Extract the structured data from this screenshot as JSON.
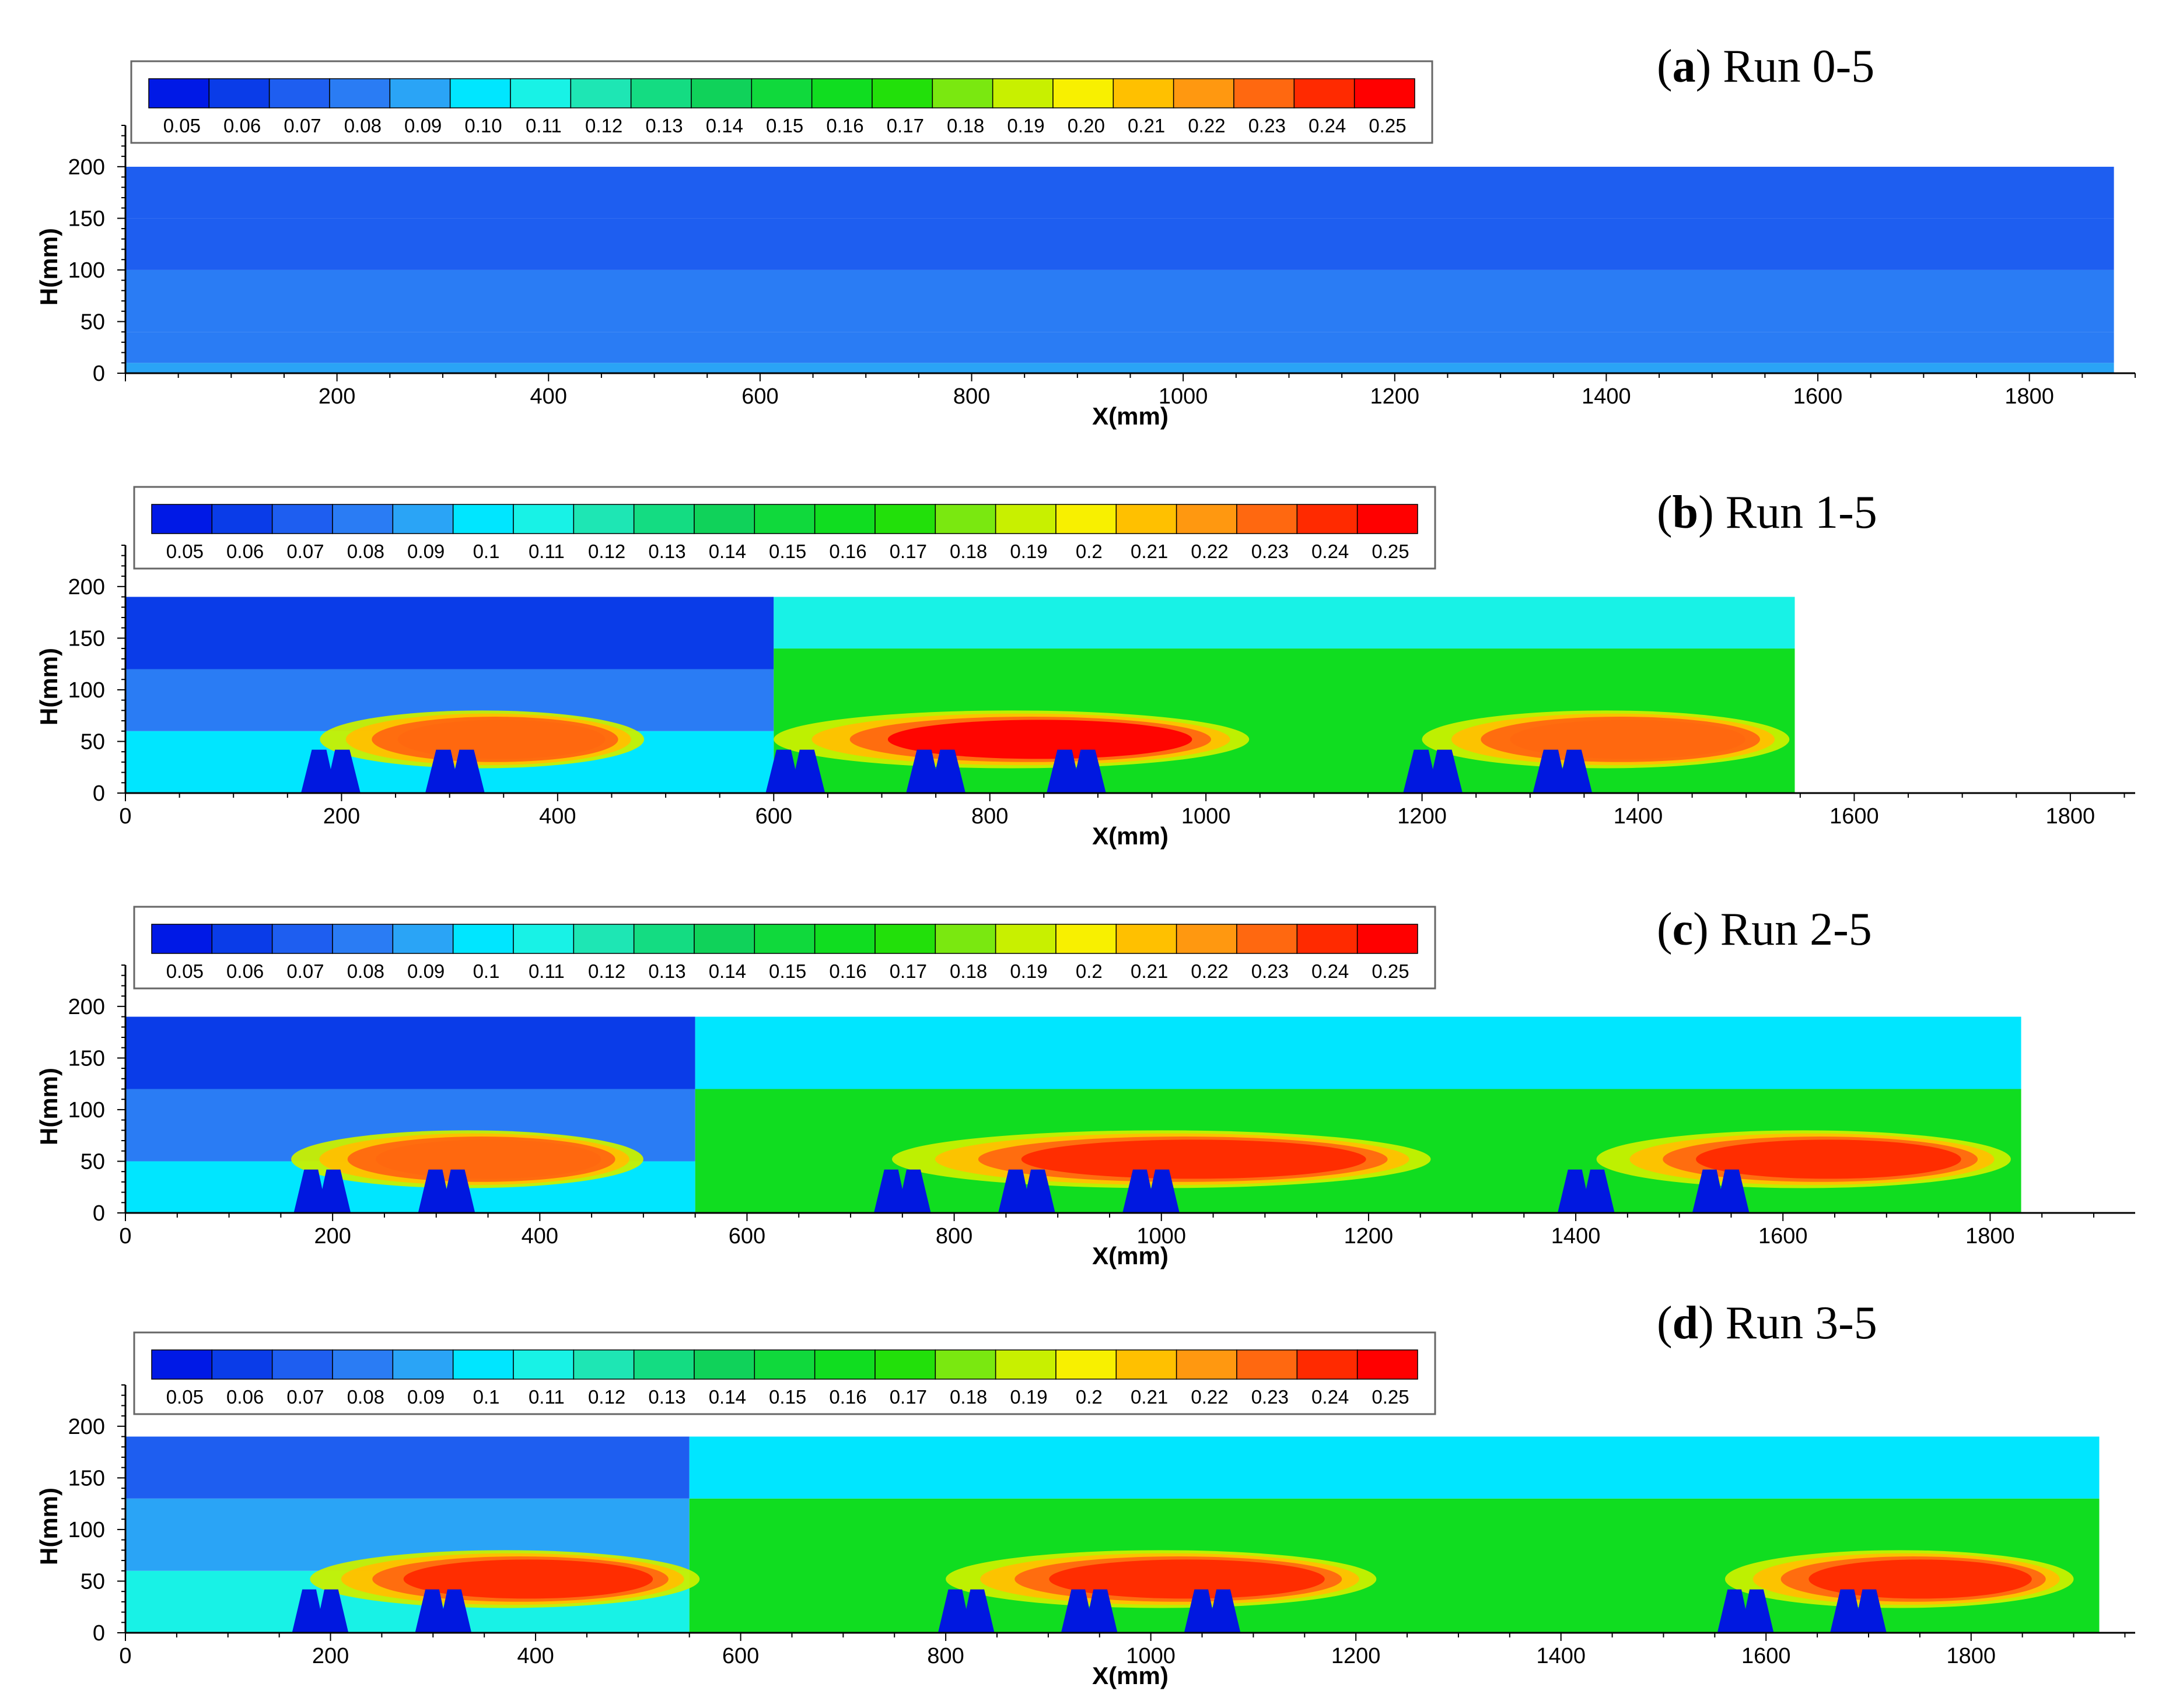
{
  "colorbar": {
    "colors": [
      "#0019e6",
      "#0a3ce8",
      "#1e5ef0",
      "#2a7cf4",
      "#2aa4f6",
      "#00e6ff",
      "#18f2e6",
      "#1ee6b4",
      "#14dc82",
      "#10d25a",
      "#10d93c",
      "#10dd20",
      "#22e00a",
      "#7ae810",
      "#c8f000",
      "#f8f000",
      "#ffc000",
      "#ff9810",
      "#ff6810",
      "#ff2a00",
      "#ff0000"
    ],
    "values": [
      0.05,
      0.06,
      0.07,
      0.08,
      0.09,
      0.1,
      0.11,
      0.12,
      0.13,
      0.14,
      0.15,
      0.16,
      0.17,
      0.18,
      0.19,
      0.2,
      0.21,
      0.22,
      0.23,
      0.24,
      0.25
    ]
  },
  "chart_data": [
    {
      "type": "heatmap",
      "title_letter": "a",
      "title_rest": "Run 0-5",
      "xlabel": "X(mm)",
      "ylabel": "H(mm)",
      "xlim": [
        0,
        1900
      ],
      "ylim": [
        0,
        240
      ],
      "xticks": [
        200,
        400,
        600,
        800,
        1000,
        1200,
        1400,
        1600,
        1800
      ],
      "yticks": [
        0,
        50,
        100,
        150,
        200
      ],
      "colorbar_labels": [
        "0.05",
        "0.06",
        "0.07",
        "0.08",
        "0.09",
        "0.10",
        "0.11",
        "0.12",
        "0.13",
        "0.14",
        "0.15",
        "0.16",
        "0.17",
        "0.18",
        "0.19",
        "0.20",
        "0.21",
        "0.22",
        "0.23",
        "0.24",
        "0.25"
      ],
      "field_extent": {
        "x": [
          0,
          1880
        ],
        "y": [
          0,
          200
        ]
      },
      "field_layers": [
        {
          "y": [
            0,
            10
          ],
          "value": 0.09
        },
        {
          "y": [
            10,
            40
          ],
          "value": 0.08
        },
        {
          "y": [
            40,
            100
          ],
          "value": 0.08
        },
        {
          "y": [
            100,
            150
          ],
          "value": 0.07
        },
        {
          "y": [
            150,
            200
          ],
          "value": 0.07
        }
      ],
      "jets": [],
      "structures": []
    },
    {
      "type": "heatmap",
      "title_letter": "b",
      "title_rest": "Run 1-5",
      "xlabel": "X(mm)",
      "ylabel": "H(mm)",
      "xlim": [
        0,
        1860
      ],
      "ylim": [
        0,
        240
      ],
      "xticks": [
        0,
        200,
        400,
        600,
        800,
        1000,
        1200,
        1400,
        1600,
        1800
      ],
      "yticks": [
        0,
        50,
        100,
        150,
        200
      ],
      "colorbar_labels": [
        "0.05",
        "0.06",
        "0.07",
        "0.08",
        "0.09",
        "0.1",
        "0.11",
        "0.12",
        "0.13",
        "0.14",
        "0.15",
        "0.16",
        "0.17",
        "0.18",
        "0.19",
        "0.2",
        "0.21",
        "0.22",
        "0.23",
        "0.24",
        "0.25"
      ],
      "field_extent": {
        "x": [
          0,
          1545
        ],
        "y": [
          0,
          190
        ]
      },
      "field_layers": [
        {
          "y": [
            0,
            60
          ],
          "x": [
            0,
            600
          ],
          "value": 0.1
        },
        {
          "y": [
            60,
            120
          ],
          "x": [
            0,
            600
          ],
          "value": 0.08
        },
        {
          "y": [
            120,
            190
          ],
          "x": [
            0,
            600
          ],
          "value": 0.06
        },
        {
          "y": [
            0,
            140
          ],
          "x": [
            600,
            1545
          ],
          "value": 0.16
        },
        {
          "y": [
            140,
            190
          ],
          "x": [
            600,
            1545
          ],
          "value": 0.11
        }
      ],
      "jets": [
        {
          "x0": 180,
          "x1": 480,
          "peak": 0.23
        },
        {
          "x0": 600,
          "x1": 1040,
          "peak": 0.25
        },
        {
          "x0": 1200,
          "x1": 1540,
          "peak": 0.23
        }
      ],
      "structures": [
        190,
        305,
        620,
        750,
        880,
        1210,
        1330
      ]
    },
    {
      "type": "heatmap",
      "title_letter": "c",
      "title_rest": "Run 2-5",
      "xlabel": "X(mm)",
      "ylabel": "H(mm)",
      "xlim": [
        0,
        1940
      ],
      "ylim": [
        0,
        240
      ],
      "xticks": [
        0,
        200,
        400,
        600,
        800,
        1000,
        1200,
        1400,
        1600,
        1800
      ],
      "yticks": [
        0,
        50,
        100,
        150,
        200
      ],
      "colorbar_labels": [
        "0.05",
        "0.06",
        "0.07",
        "0.08",
        "0.09",
        "0.1",
        "0.11",
        "0.12",
        "0.13",
        "0.14",
        "0.15",
        "0.16",
        "0.17",
        "0.18",
        "0.19",
        "0.2",
        "0.21",
        "0.22",
        "0.23",
        "0.24",
        "0.25"
      ],
      "field_extent": {
        "x": [
          0,
          1830
        ],
        "y": [
          0,
          190
        ]
      },
      "field_layers": [
        {
          "y": [
            0,
            50
          ],
          "x": [
            0,
            550
          ],
          "value": 0.1
        },
        {
          "y": [
            50,
            120
          ],
          "x": [
            0,
            550
          ],
          "value": 0.08
        },
        {
          "y": [
            120,
            190
          ],
          "x": [
            0,
            550
          ],
          "value": 0.06
        },
        {
          "y": [
            0,
            120
          ],
          "x": [
            550,
            1830
          ],
          "value": 0.16
        },
        {
          "y": [
            120,
            190
          ],
          "x": [
            550,
            1830
          ],
          "value": 0.1
        }
      ],
      "jets": [
        {
          "x0": 160,
          "x1": 500,
          "peak": 0.23
        },
        {
          "x0": 740,
          "x1": 1260,
          "peak": 0.24
        },
        {
          "x0": 1420,
          "x1": 1820,
          "peak": 0.24
        }
      ],
      "structures": [
        190,
        310,
        750,
        870,
        990,
        1410,
        1540
      ]
    },
    {
      "type": "heatmap",
      "title_letter": "d",
      "title_rest": "Run 3-5",
      "xlabel": "X(mm)",
      "ylabel": "H(mm)",
      "xlim": [
        0,
        1960
      ],
      "ylim": [
        0,
        240
      ],
      "xticks": [
        0,
        200,
        400,
        600,
        800,
        1000,
        1200,
        1400,
        1600,
        1800
      ],
      "yticks": [
        0,
        50,
        100,
        150,
        200
      ],
      "colorbar_labels": [
        "0.05",
        "0.06",
        "0.07",
        "0.08",
        "0.09",
        "0.1",
        "0.11",
        "0.12",
        "0.13",
        "0.14",
        "0.15",
        "0.16",
        "0.17",
        "0.18",
        "0.19",
        "0.2",
        "0.21",
        "0.22",
        "0.23",
        "0.24",
        "0.25"
      ],
      "field_extent": {
        "x": [
          0,
          1925
        ],
        "y": [
          0,
          190
        ]
      },
      "field_layers": [
        {
          "y": [
            0,
            60
          ],
          "x": [
            0,
            550
          ],
          "value": 0.11
        },
        {
          "y": [
            60,
            130
          ],
          "x": [
            0,
            550
          ],
          "value": 0.09
        },
        {
          "y": [
            130,
            190
          ],
          "x": [
            0,
            550
          ],
          "value": 0.07
        },
        {
          "y": [
            0,
            130
          ],
          "x": [
            550,
            1925
          ],
          "value": 0.16
        },
        {
          "y": [
            130,
            190
          ],
          "x": [
            550,
            1925
          ],
          "value": 0.1
        }
      ],
      "jets": [
        {
          "x0": 180,
          "x1": 560,
          "peak": 0.24
        },
        {
          "x0": 800,
          "x1": 1220,
          "peak": 0.24
        },
        {
          "x0": 1560,
          "x1": 1900,
          "peak": 0.24
        }
      ],
      "structures": [
        190,
        310,
        820,
        940,
        1060,
        1580,
        1690
      ]
    }
  ]
}
